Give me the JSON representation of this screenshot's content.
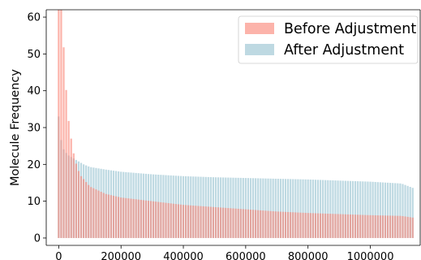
{
  "chart_data": {
    "type": "bar",
    "title": "",
    "xlabel": "",
    "ylabel": "Molecule Frequency",
    "xlim": [
      -40000,
      1160000
    ],
    "ylim": [
      -2,
      62
    ],
    "xticks": [
      0,
      200000,
      400000,
      600000,
      800000,
      1000000
    ],
    "xtick_labels": [
      "0",
      "200000",
      "400000",
      "600000",
      "800000",
      "1000000"
    ],
    "yticks": [
      0,
      10,
      20,
      30,
      40,
      50,
      60
    ],
    "ytick_labels": [
      "0",
      "10",
      "20",
      "30",
      "40",
      "50",
      "60"
    ],
    "grid": false,
    "legend": {
      "position": "top-right"
    },
    "colors": {
      "before": "#fa8072",
      "after": "#aecfdb",
      "before_alpha": 0.6,
      "after_alpha": 0.8
    },
    "series": [
      {
        "name": "Before Adjustment",
        "x": [
          0,
          10000,
          20000,
          30000,
          40000,
          50000,
          60000,
          70000,
          80000,
          100000,
          150000,
          200000,
          300000,
          400000,
          500000,
          600000,
          700000,
          800000,
          900000,
          1000000,
          1100000,
          1140000
        ],
        "values": [
          62,
          62,
          45,
          33,
          27,
          22,
          19,
          17,
          16,
          14,
          12,
          11,
          10,
          9,
          8.4,
          7.8,
          7.2,
          6.8,
          6.5,
          6.2,
          6.0,
          5.5
        ]
      },
      {
        "name": "After Adjustment",
        "x": [
          0,
          10000,
          20000,
          30000,
          40000,
          50000,
          60000,
          70000,
          80000,
          100000,
          150000,
          200000,
          300000,
          400000,
          500000,
          600000,
          700000,
          800000,
          900000,
          1000000,
          1100000,
          1140000
        ],
        "values": [
          33,
          25,
          23.5,
          22.5,
          22,
          21.5,
          21,
          20.5,
          20,
          19.3,
          18.6,
          18.0,
          17.3,
          16.8,
          16.5,
          16.3,
          16.1,
          15.9,
          15.6,
          15.3,
          14.8,
          13.5
        ]
      }
    ]
  }
}
